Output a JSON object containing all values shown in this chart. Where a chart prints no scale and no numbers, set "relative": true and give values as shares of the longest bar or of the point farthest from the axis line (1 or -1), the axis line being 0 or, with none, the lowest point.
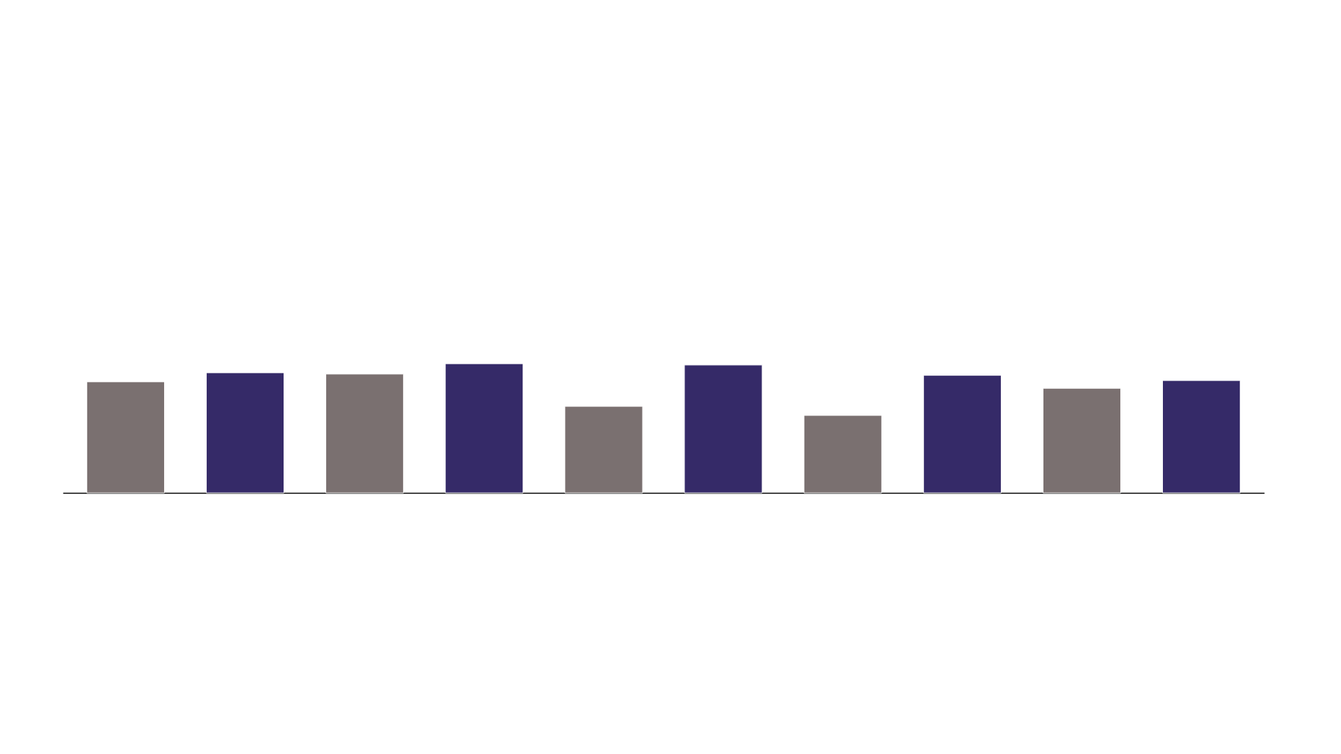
{
  "chart_data": {
    "type": "bar",
    "relative": true,
    "categories": [
      null,
      null,
      null,
      null,
      null,
      null,
      null,
      null,
      null,
      null
    ],
    "colors": [
      "#7a7070",
      "#352a68",
      "#7a7070",
      "#352a68",
      "#7a7070",
      "#352a68",
      "#7a7070",
      "#352a68",
      "#7a7070",
      "#352a68"
    ],
    "values": [
      0.86,
      0.93,
      0.92,
      1,
      0.67,
      0.99,
      0.6,
      0.91,
      0.81,
      0.87
    ]
  }
}
